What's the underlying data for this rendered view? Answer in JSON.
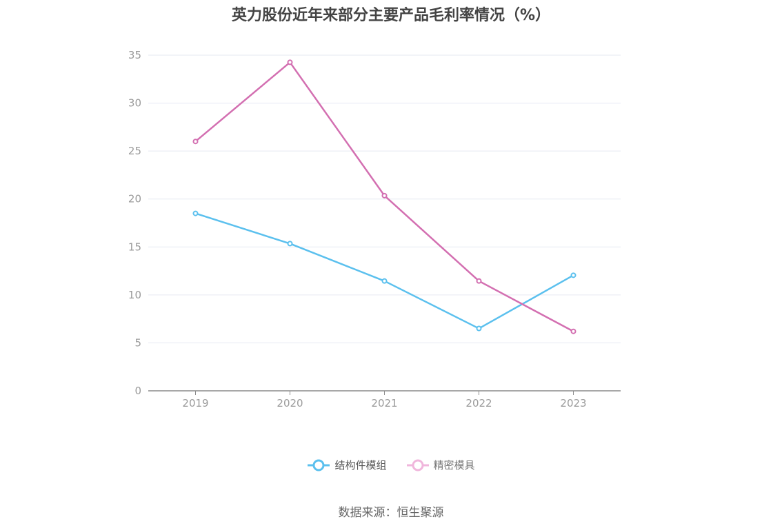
{
  "title": "英力股份近年来部分主要产品毛利率情况（%）",
  "source": "数据来源：恒生聚源",
  "chart_data": {
    "type": "line",
    "categories": [
      "2019",
      "2020",
      "2021",
      "2022",
      "2023"
    ],
    "ylim": [
      0,
      35
    ],
    "yticks": [
      0,
      5,
      10,
      15,
      20,
      25,
      30,
      35
    ],
    "grid": true,
    "legend_position": "bottom",
    "series": [
      {
        "name": "结构件模组",
        "color": "#5bc0ee",
        "values": [
          18.5,
          15.35,
          11.45,
          6.5,
          12.05
        ]
      },
      {
        "name": "精密模具",
        "color": "#d36fb1",
        "values": [
          26.0,
          34.25,
          20.35,
          11.45,
          6.2
        ]
      }
    ]
  }
}
